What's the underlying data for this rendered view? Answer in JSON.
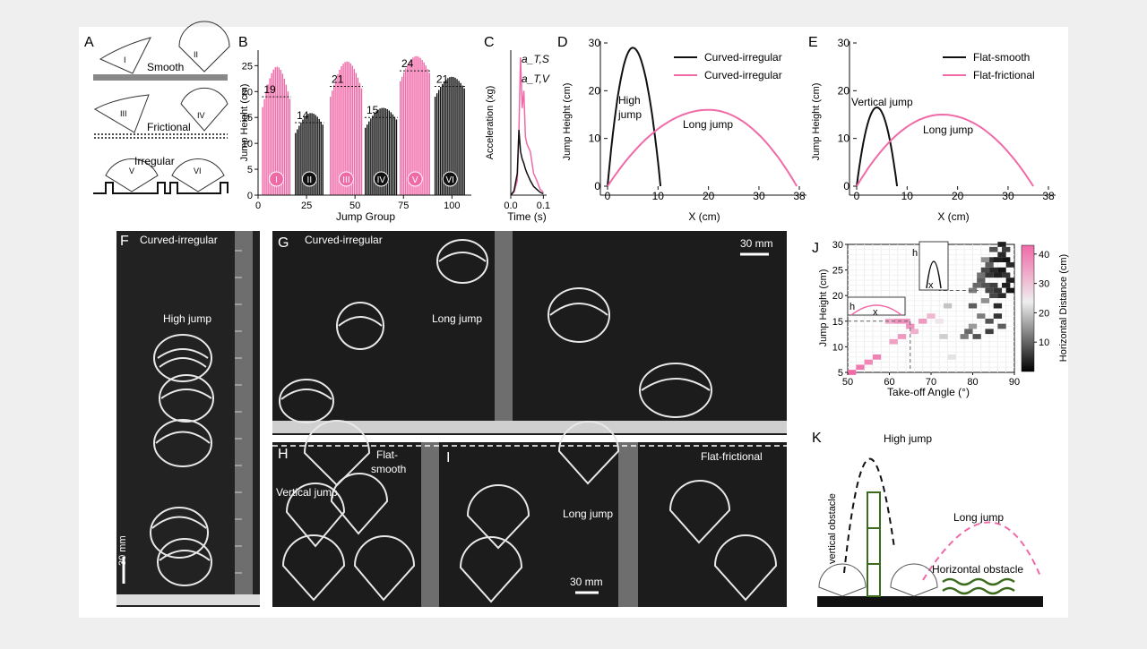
{
  "panel_letters": [
    "A",
    "B",
    "C",
    "D",
    "E",
    "F",
    "G",
    "H",
    "I",
    "J",
    "K"
  ],
  "panel_a": {
    "surfaces": [
      "Smooth",
      "Frictional",
      "Irregular"
    ],
    "robots": [
      "I",
      "II",
      "III",
      "IV",
      "V",
      "VI"
    ]
  },
  "panels_fgh": {
    "f_title": "Curved-irregular",
    "f_label": "High jump",
    "g_title": "Curved-irregular",
    "g_label": "Long jump",
    "g_scale": "30 mm",
    "f_scale": "30 mm",
    "h_title": "Flat-\nsmooth",
    "h_title_1": "Flat-",
    "h_title_2": "smooth",
    "h_label": "Vertical jump",
    "i_title": "Flat-frictional",
    "i_label": "Long jump",
    "i_scale": "30 mm"
  },
  "panel_k": {
    "high_jump": "High jump",
    "long_jump": "Long jump",
    "vertical_obstacle": "vertical obstacle",
    "horizontal_obstacle": "Horizontal obstacle"
  },
  "colors": {
    "pink": "#f06aa8",
    "black": "#111111"
  },
  "chart_data": [
    {
      "id": "B",
      "type": "bar",
      "xlabel": "Jump Group",
      "ylabel": "Jump Height (cm)",
      "xlim": [
        0,
        110
      ],
      "ylim": [
        0,
        28
      ],
      "xticks": [
        0,
        25,
        50,
        75,
        100
      ],
      "yticks": [
        0,
        5,
        10,
        15,
        20,
        25
      ],
      "groups": [
        {
          "label": "I",
          "color": "pink",
          "x_start": 2,
          "x_end": 17,
          "mean": 19,
          "peak": 25
        },
        {
          "label": "II",
          "color": "black",
          "x_start": 19,
          "x_end": 34,
          "mean": 14,
          "peak": 16
        },
        {
          "label": "III",
          "color": "pink",
          "x_start": 37,
          "x_end": 54,
          "mean": 21,
          "peak": 26
        },
        {
          "label": "IV",
          "color": "black",
          "x_start": 55,
          "x_end": 72,
          "mean": 15,
          "peak": 17
        },
        {
          "label": "V",
          "color": "pink",
          "x_start": 73,
          "x_end": 89,
          "mean": 24,
          "peak": 27
        },
        {
          "label": "VI",
          "color": "black",
          "x_start": 91,
          "x_end": 107,
          "mean": 21,
          "peak": 23
        }
      ]
    },
    {
      "id": "C",
      "type": "line",
      "xlabel": "Time (s)",
      "ylabel": "Acceleration (xg)",
      "xlim": [
        0,
        0.11
      ],
      "ylim": [
        0,
        100
      ],
      "xticks": [
        0.0,
        0.1
      ],
      "xtick_labels": [
        "0.0",
        "0.1"
      ],
      "annotations": [
        "a_T,S",
        "a_T,V"
      ],
      "series": [
        {
          "name": "a_T,S",
          "color": "pink",
          "x": [
            0,
            0.01,
            0.02,
            0.025,
            0.03,
            0.035,
            0.04,
            0.045,
            0.05,
            0.06,
            0.07,
            0.08,
            0.09,
            0.1
          ],
          "y": [
            0,
            2,
            10,
            45,
            95,
            60,
            72,
            40,
            35,
            30,
            15,
            10,
            4,
            2
          ]
        },
        {
          "name": "a_T,V",
          "color": "black",
          "x": [
            0,
            0.01,
            0.02,
            0.025,
            0.03,
            0.035,
            0.04,
            0.045,
            0.05,
            0.06,
            0.07,
            0.08,
            0.09,
            0.1
          ],
          "y": [
            0,
            3,
            15,
            45,
            30,
            25,
            22,
            18,
            15,
            10,
            6,
            4,
            2,
            1
          ]
        }
      ]
    },
    {
      "id": "D",
      "type": "line",
      "xlabel": "X (cm)",
      "ylabel": "Jump Height (cm)",
      "xlim": [
        0,
        38
      ],
      "ylim": [
        0,
        30
      ],
      "xticks": [
        0,
        10,
        20,
        30,
        38
      ],
      "yticks": [
        0,
        10,
        20,
        30
      ],
      "annotations": [
        "High\njump",
        "Long jump"
      ],
      "annotation_1": "High",
      "annotation_2": "jump",
      "annotation_3": "Long jump",
      "series": [
        {
          "name": "Curved-irregular",
          "color": "black",
          "x_range": [
            0,
            10.5
          ],
          "peak_x": 5,
          "peak_y": 29
        },
        {
          "name": "Curved-irregular",
          "color": "pink",
          "x_range": [
            0,
            37.5
          ],
          "peak_x": 20,
          "peak_y": 16
        }
      ]
    },
    {
      "id": "E",
      "type": "line",
      "xlabel": "X (cm)",
      "ylabel": "Jump Height (cm)",
      "xlim": [
        0,
        38
      ],
      "ylim": [
        0,
        30
      ],
      "xticks": [
        0,
        10,
        20,
        30,
        38
      ],
      "yticks": [
        0,
        10,
        20,
        30
      ],
      "annotation_1": "Vertical jump",
      "annotation_2": "Long jump",
      "series": [
        {
          "name": "Flat-smooth",
          "color": "black",
          "x_range": [
            0,
            8
          ],
          "peak_x": 4,
          "peak_y": 16.5
        },
        {
          "name": "Flat-frictional",
          "color": "pink",
          "x_range": [
            0,
            35
          ],
          "peak_x": 17,
          "peak_y": 15
        }
      ]
    },
    {
      "id": "J",
      "type": "heatmap",
      "xlabel": "Take-off Angle (°)",
      "ylabel": "Jump Height (cm)",
      "colorbar_label": "Horizontal Distance (cm)",
      "xlim": [
        50,
        90
      ],
      "ylim": [
        5,
        30
      ],
      "xticks": [
        50,
        60,
        70,
        80,
        90
      ],
      "yticks": [
        5,
        10,
        15,
        20,
        25,
        30
      ],
      "colorbar_ticks": [
        10,
        20,
        30,
        40
      ],
      "inset_labels": [
        "h",
        "x"
      ],
      "threshold_height": 15,
      "threshold_angle": 65,
      "cells": [
        [
          51,
          5,
          40
        ],
        [
          53,
          6,
          38
        ],
        [
          55,
          7,
          36
        ],
        [
          57,
          8,
          37
        ],
        [
          61,
          11,
          33
        ],
        [
          63,
          12,
          34
        ],
        [
          66,
          13,
          31
        ],
        [
          68,
          15,
          34
        ],
        [
          70,
          16,
          30
        ],
        [
          62,
          15,
          35
        ],
        [
          64,
          15,
          35
        ],
        [
          60,
          15,
          32
        ],
        [
          65,
          14,
          35
        ],
        [
          72,
          15,
          24
        ],
        [
          73,
          12,
          20
        ],
        [
          75,
          8,
          22
        ],
        [
          74,
          18,
          19
        ],
        [
          78,
          12,
          12
        ],
        [
          79,
          13,
          10
        ],
        [
          80,
          14,
          15
        ],
        [
          81,
          12,
          8
        ],
        [
          82,
          16,
          12
        ],
        [
          80,
          18,
          9
        ],
        [
          83,
          19,
          14
        ],
        [
          84,
          13,
          6
        ],
        [
          84,
          15,
          8
        ],
        [
          85,
          20,
          7
        ],
        [
          86,
          16,
          5
        ],
        [
          87,
          14,
          9
        ],
        [
          86,
          18,
          4
        ],
        [
          80,
          21,
          12
        ],
        [
          81,
          22,
          10
        ],
        [
          82,
          23,
          9
        ],
        [
          83,
          22,
          8
        ],
        [
          84,
          21,
          7
        ],
        [
          85,
          22,
          6
        ],
        [
          86,
          21,
          5
        ],
        [
          87,
          20,
          4
        ],
        [
          88,
          22,
          3
        ],
        [
          89,
          21,
          2
        ],
        [
          82,
          24,
          11
        ],
        [
          83,
          25,
          7
        ],
        [
          84,
          24,
          5
        ],
        [
          85,
          25,
          4
        ],
        [
          86,
          24,
          3
        ],
        [
          87,
          25,
          2
        ],
        [
          88,
          24,
          5
        ],
        [
          89,
          23,
          3
        ],
        [
          83,
          27,
          14
        ],
        [
          84,
          26,
          9
        ],
        [
          85,
          27,
          5
        ],
        [
          86,
          27,
          3
        ],
        [
          87,
          28,
          4
        ],
        [
          88,
          27,
          2
        ],
        [
          88,
          29,
          6
        ],
        [
          87,
          30,
          3
        ],
        [
          89,
          26,
          4
        ],
        [
          85,
          29,
          8
        ]
      ]
    }
  ]
}
